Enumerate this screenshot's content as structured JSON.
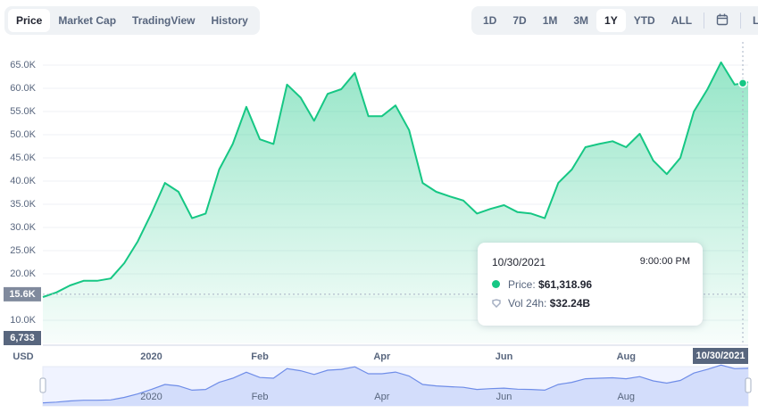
{
  "tabs": [
    "Price",
    "Market Cap",
    "TradingView",
    "History"
  ],
  "active_tab": 0,
  "ranges": [
    "1D",
    "7D",
    "1M",
    "3M",
    "1Y",
    "YTD",
    "ALL"
  ],
  "active_range": 4,
  "scale_toggle": "LOG",
  "chart_data": {
    "type": "area",
    "categories": [
      null,
      null,
      null,
      null,
      null,
      null,
      null,
      null,
      "2020",
      null,
      null,
      null,
      null,
      null,
      null,
      null,
      "Feb",
      null,
      null,
      null,
      null,
      null,
      null,
      null,
      null,
      "Apr",
      null,
      null,
      null,
      null,
      null,
      null,
      null,
      null,
      "Jun",
      null,
      null,
      null,
      null,
      null,
      null,
      null,
      null,
      "Aug",
      null,
      null,
      null,
      null,
      null,
      null,
      null,
      null,
      null
    ],
    "values": [
      15000,
      16000,
      17500,
      18500,
      18500,
      19000,
      22300,
      27000,
      33000,
      39600,
      37700,
      32000,
      33000,
      42500,
      48000,
      56000,
      49000,
      48000,
      60800,
      58000,
      53000,
      58800,
      59800,
      63300,
      54000,
      54000,
      56300,
      51000,
      39600,
      37700,
      36700,
      35800,
      33000,
      34000,
      34800,
      33300,
      33000,
      32000,
      39600,
      42500,
      47300,
      48000,
      48600,
      47300,
      50200,
      44400,
      41500,
      45000,
      55000,
      59800,
      65600,
      60800,
      61300
    ],
    "color": "#16c784",
    "ylim": [
      5000,
      70000
    ],
    "yticks": [
      {
        "value": 10000,
        "label": "10.0K"
      },
      {
        "value": 15000,
        "label": "15.0K"
      },
      {
        "value": 20000,
        "label": "20.0K"
      },
      {
        "value": 25000,
        "label": "25.0K"
      },
      {
        "value": 30000,
        "label": "30.0K"
      },
      {
        "value": 35000,
        "label": "35.0K"
      },
      {
        "value": 40000,
        "label": "40.0K"
      },
      {
        "value": 45000,
        "label": "45.0K"
      },
      {
        "value": 50000,
        "label": "50.0K"
      },
      {
        "value": 55000,
        "label": "55.0K"
      },
      {
        "value": 60000,
        "label": "60.0K"
      },
      {
        "value": 65000,
        "label": "65.0K"
      }
    ],
    "grid": true,
    "currency": "USD",
    "price_marker": {
      "value": 15600,
      "label": "15.6K"
    },
    "volume_marker": "6,733",
    "selected_date": "10/30/2021"
  },
  "tooltip": {
    "date": "10/30/2021",
    "time": "9:00:00 PM",
    "price_label": "Price:",
    "price": "$61,318.96",
    "volume_label": "Vol 24h:",
    "volume": "$32.24B"
  }
}
